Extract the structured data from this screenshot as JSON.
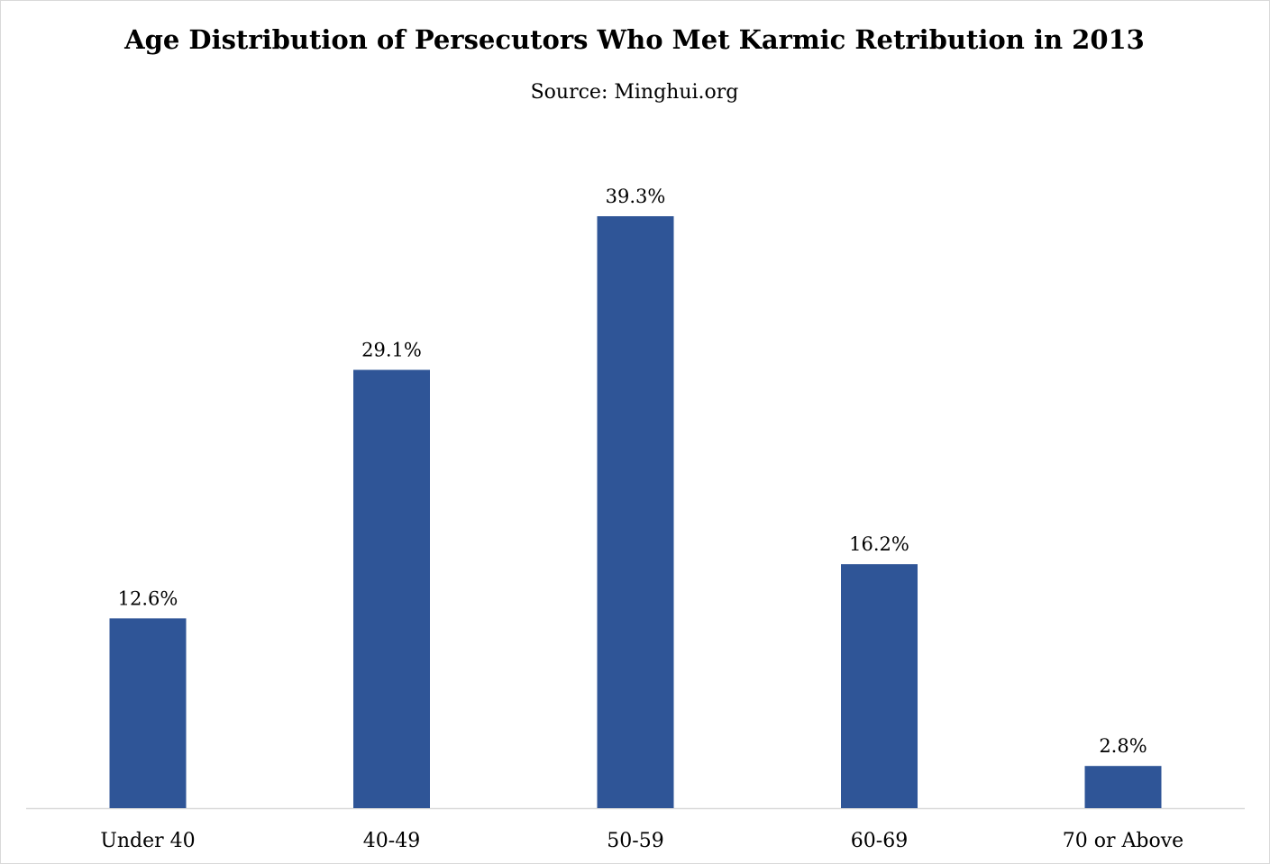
{
  "chart_data": {
    "type": "bar",
    "title": "Age Distribution of Persecutors Who Met Karmic Retribution in 2013",
    "subtitle": "Source: Minghui.org",
    "categories": [
      "Under 40",
      "40-49",
      "50-59",
      "60-69",
      "70 or Above"
    ],
    "values": [
      12.6,
      29.1,
      39.3,
      16.2,
      2.8
    ],
    "data_labels": [
      "12.6%",
      "29.1%",
      "39.3%",
      "16.2%",
      "2.8%"
    ],
    "xlabel": "",
    "ylabel": "",
    "ylim": [
      0,
      39.3
    ],
    "grid": false,
    "legend": "none",
    "bar_color": "#2f5597",
    "axis_color": "#d9d9d9"
  }
}
